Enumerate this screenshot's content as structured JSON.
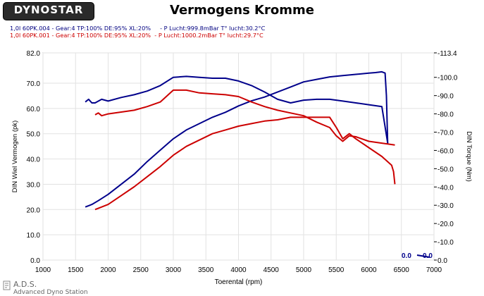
{
  "logo": {
    "text": "DYNOSTAR"
  },
  "chart_data": {
    "type": "line",
    "title": "Vermogens Kromme",
    "runs": [
      "1,0l 60PK.004 - Gear:4 TP:100% DE:95% XL:20%     - P Lucht:999.8mBar T° lucht:30.2°C",
      "1,0l 60PK.001 - Gear:4 TP:100% DE:95% XL:20%  - P Lucht:1000.2mBar T° lucht:29.7°C"
    ],
    "xlabel": "Toerental (rpm)",
    "ylabel_left": "DIN Wiel Vermogen (pk)",
    "ylabel_right": "DIN Torque (Nm)",
    "xlim": [
      1000,
      7000
    ],
    "ylim_left": [
      0,
      82
    ],
    "ylim_right": [
      0,
      113.4
    ],
    "x_ticks": [
      "1000",
      "1500",
      "2000",
      "2500",
      "3000",
      "3500",
      "4000",
      "4500",
      "5000",
      "5500",
      "6000",
      "6500",
      "7000"
    ],
    "y_left_ticks": [
      "0.0",
      "10.0",
      "20.0",
      "30.0",
      "40.0",
      "50.0",
      "60.0",
      "70.0",
      "82.0"
    ],
    "y_right_ticks": [
      "0.0",
      "-10.0",
      "-20.0",
      "-30.0",
      "-40.0",
      "-50.0",
      "-60.0",
      "-70.0",
      "-80.0",
      "-90.0",
      "-100.0",
      "-113.4"
    ],
    "cursor_readout": [
      "0.0",
      "0.0"
    ],
    "series": [
      {
        "name": "1,0l 60PK.004 power",
        "axis": "left",
        "color": "#00008b",
        "x": [
          1650,
          1750,
          1850,
          2000,
          2200,
          2400,
          2600,
          2800,
          3000,
          3200,
          3400,
          3600,
          3800,
          4000,
          4200,
          4400,
          4600,
          4800,
          5000,
          5200,
          5400,
          5600,
          5800,
          6000,
          6100,
          6200,
          6250,
          6270,
          6290
        ],
        "y": [
          21,
          22,
          23.5,
          26,
          30,
          34,
          39,
          43.5,
          48,
          51.5,
          54,
          56.5,
          58.5,
          61,
          63,
          64.5,
          66.5,
          68.5,
          70.5,
          71.5,
          72.5,
          73,
          73.5,
          74,
          74.2,
          74.5,
          74,
          65,
          46
        ]
      },
      {
        "name": "1,0l 60PK.004 torque",
        "axis": "right",
        "color": "#00008b",
        "x": [
          1650,
          1700,
          1750,
          1800,
          1900,
          2000,
          2200,
          2400,
          2600,
          2800,
          3000,
          3200,
          3400,
          3600,
          3800,
          4000,
          4200,
          4400,
          4600,
          4800,
          5000,
          5200,
          5400,
          5600,
          5800,
          6000,
          6200,
          6290
        ],
        "y": [
          86.5,
          88,
          86,
          86,
          88,
          87,
          89,
          90.5,
          92.5,
          95.5,
          100,
          100.5,
          100,
          99.5,
          99.5,
          98,
          95.5,
          92,
          88,
          86,
          87.5,
          88,
          88,
          87,
          86,
          85,
          84,
          64
        ]
      },
      {
        "name": "1,0l 60PK.001 power",
        "axis": "left",
        "color": "#cc0000",
        "x": [
          1800,
          1900,
          2000,
          2200,
          2400,
          2600,
          2800,
          3000,
          3200,
          3400,
          3600,
          3800,
          4000,
          4200,
          4400,
          4600,
          4800,
          5000,
          5200,
          5400,
          5500,
          5600,
          5700,
          5800,
          6000,
          6200,
          6350,
          6380,
          6400
        ],
        "y": [
          20,
          21,
          22,
          25.5,
          29,
          33,
          37,
          41.5,
          45,
          47.5,
          50,
          51.5,
          53,
          54,
          55,
          55.5,
          56.5,
          56.5,
          56.5,
          56.5,
          52.5,
          48,
          50,
          48,
          44.5,
          41,
          37.5,
          35,
          30
        ]
      },
      {
        "name": "1,0l 60PK.001 torque",
        "axis": "right",
        "color": "#cc0000",
        "x": [
          1800,
          1850,
          1900,
          2000,
          2200,
          2400,
          2600,
          2800,
          3000,
          3200,
          3400,
          3600,
          3800,
          4000,
          4200,
          4400,
          4600,
          4800,
          5000,
          5200,
          5400,
          5500,
          5600,
          5700,
          5800,
          6000,
          6200,
          6400
        ],
        "y": [
          79.5,
          80.5,
          79,
          80,
          81,
          82,
          84,
          86.5,
          93,
          93,
          91.5,
          91,
          90.5,
          89.5,
          86.5,
          84,
          82,
          80.5,
          79,
          75.5,
          72.5,
          68,
          65,
          68,
          67.5,
          65,
          64,
          63
        ]
      }
    ]
  },
  "footer": {
    "brand": "A.D.S.",
    "subtitle": "Advanced Dyno Station"
  }
}
